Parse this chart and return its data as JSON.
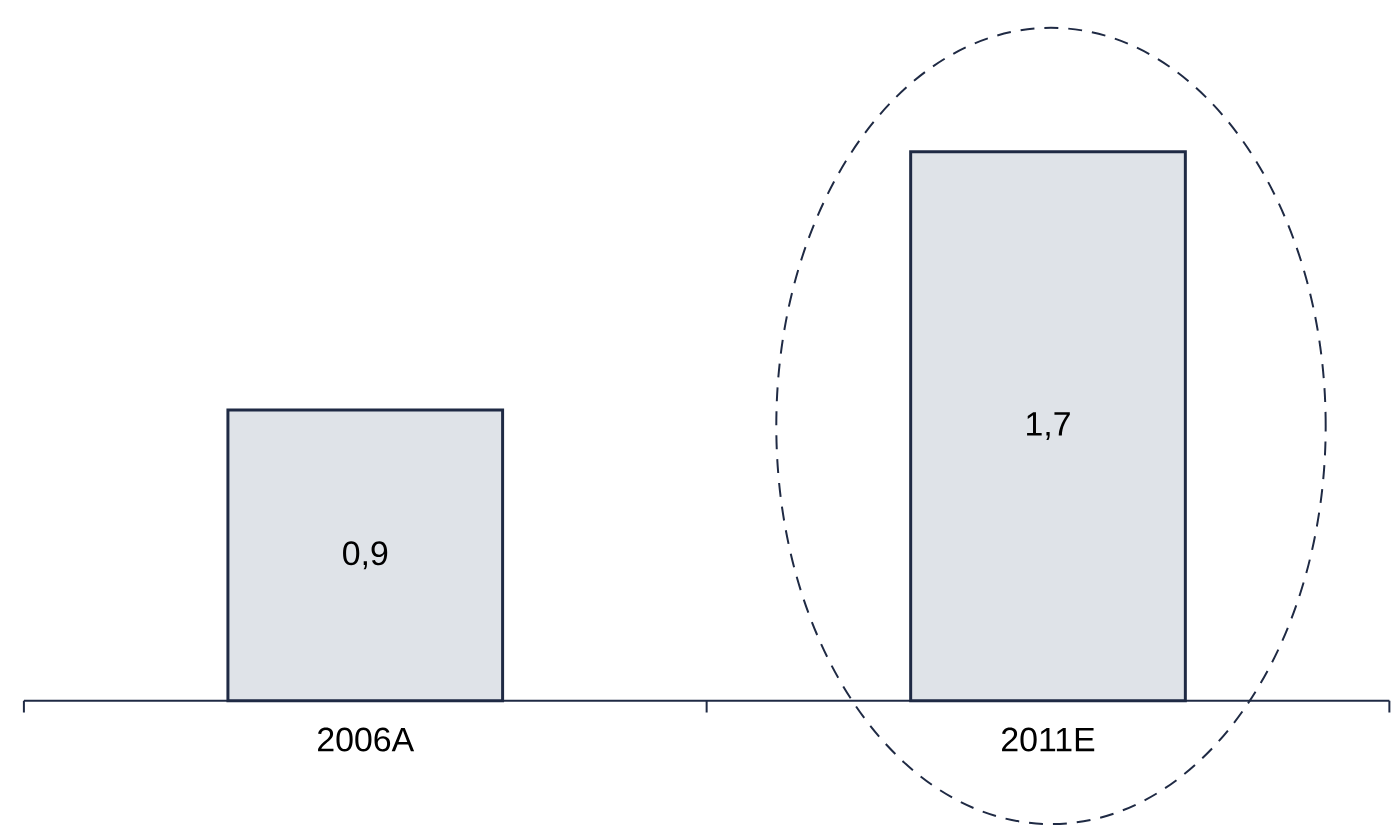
{
  "chart_data": {
    "type": "bar",
    "categories": [
      "2006A",
      "2011E"
    ],
    "values": [
      0.9,
      1.7
    ],
    "value_labels": [
      "0,9",
      "1,7"
    ],
    "color": "#dfe3e8"
  }
}
